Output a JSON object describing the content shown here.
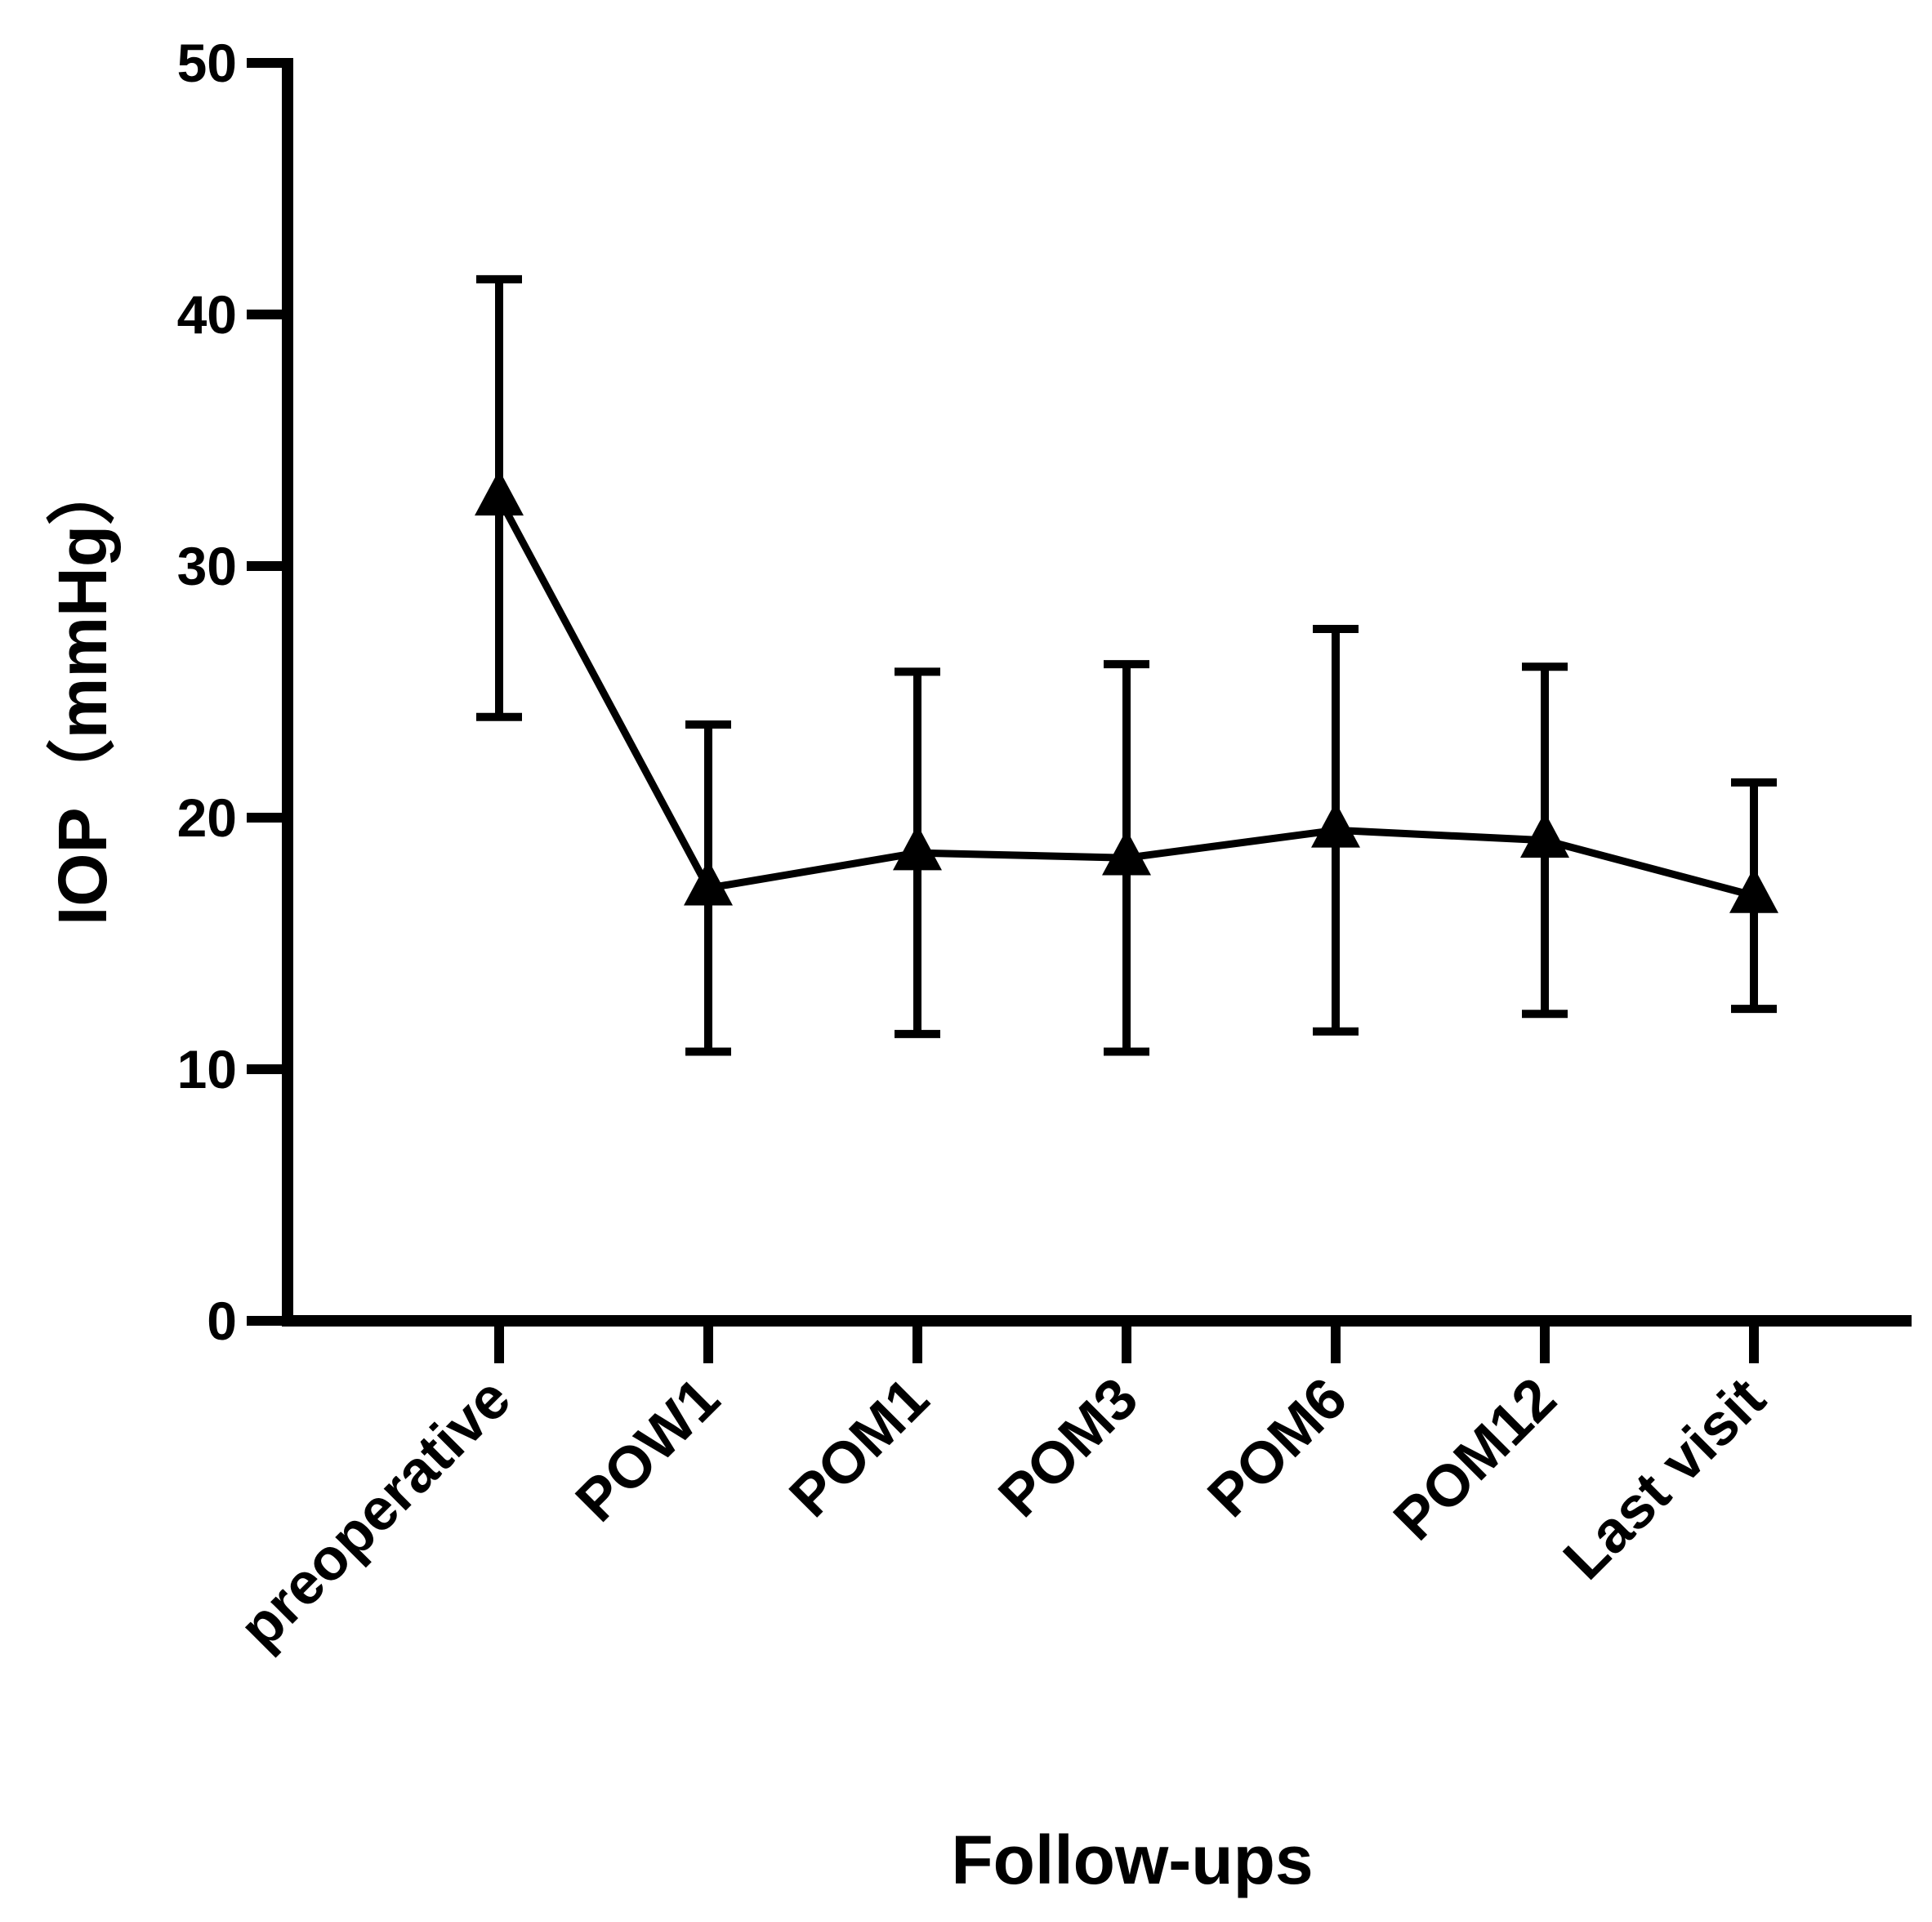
{
  "chart_data": {
    "type": "line",
    "title": "",
    "xlabel": "Follow-ups",
    "ylabel": "IOP（mmHg）",
    "ylim": [
      0,
      50
    ],
    "yticks": [
      0,
      10,
      20,
      30,
      40,
      50
    ],
    "categories": [
      "preoperative",
      "POW1",
      "POM1",
      "POM3",
      "POM6",
      "POM12",
      "Last visit"
    ],
    "series": [
      {
        "values": [
          32.7,
          17.2,
          18.6,
          18.4,
          19.5,
          19.1,
          16.9
        ],
        "error_low": [
          24.0,
          10.7,
          11.4,
          10.7,
          11.5,
          12.2,
          12.4
        ],
        "error_high": [
          41.4,
          23.7,
          25.8,
          26.1,
          27.5,
          26.0,
          21.4
        ],
        "marker": "triangle",
        "color": "#000000"
      }
    ],
    "grid": false,
    "legend": "none"
  }
}
